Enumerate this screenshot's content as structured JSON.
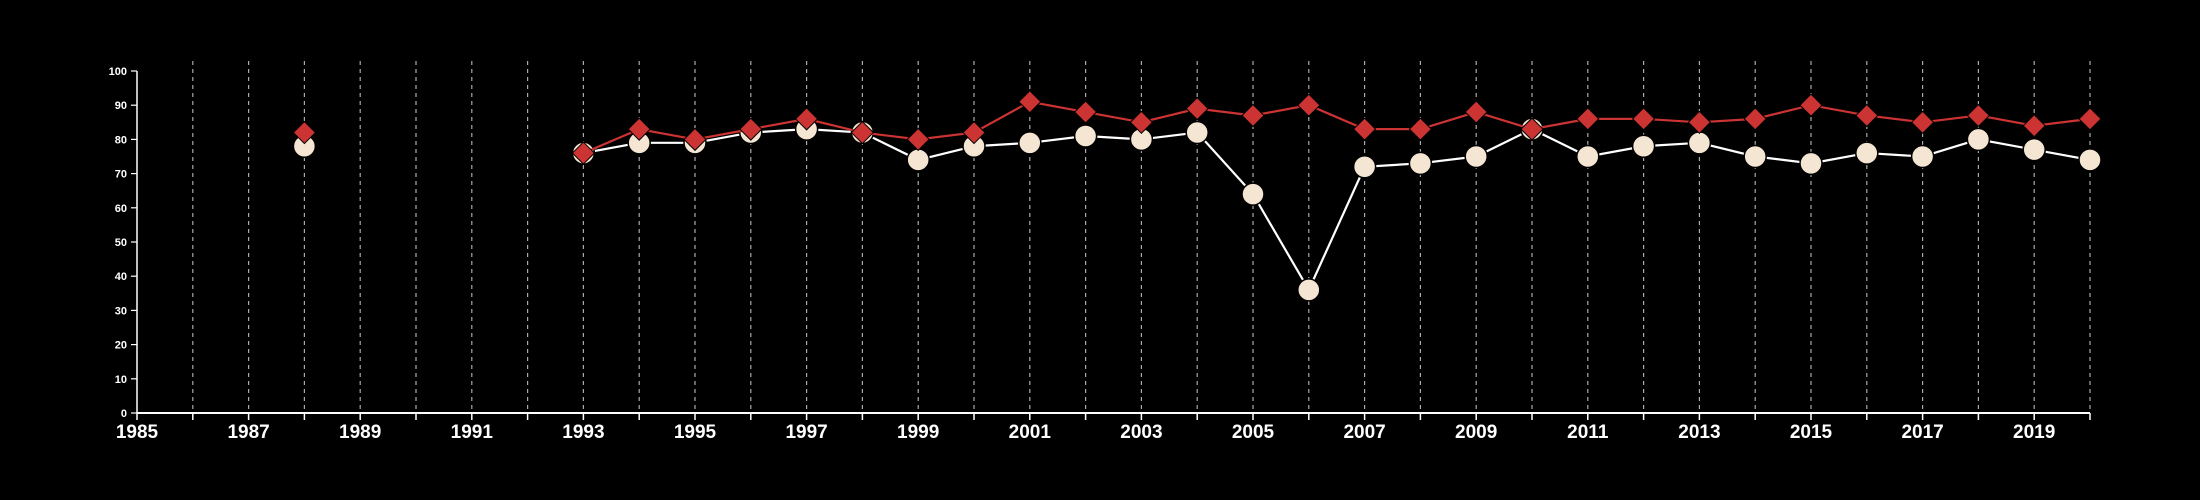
{
  "chart_data": {
    "type": "line",
    "title": "",
    "xlabel": "",
    "ylabel": "",
    "xlim": [
      1985,
      2020
    ],
    "ylim": [
      0,
      100
    ],
    "grid": "vertical dashed at every year",
    "legend": "none",
    "background": "#000000",
    "x_ticks": [
      1985,
      1987,
      1989,
      1991,
      1993,
      1995,
      1997,
      1999,
      2001,
      2003,
      2005,
      2007,
      2009,
      2011,
      2013,
      2015,
      2017,
      2019
    ],
    "x_tick_labels": [
      "1985",
      "1987",
      "1989",
      "1991",
      "1993",
      "1995",
      "1997",
      "1999",
      "2001",
      "2003",
      "2005",
      "2007",
      "2009",
      "2011",
      "2013",
      "2015",
      "2017",
      "2019"
    ],
    "y_ticks": [
      0,
      10,
      20,
      30,
      40,
      50,
      60,
      70,
      80,
      90,
      100
    ],
    "y_tick_labels": [
      "0",
      "10",
      "20",
      "30",
      "40",
      "50",
      "60",
      "70",
      "80",
      "90",
      "100"
    ],
    "series": [
      {
        "marker": "diamond",
        "color": "#cc3333",
        "line_color": "#cc3333",
        "x": [
          1988,
          1993,
          1994,
          1995,
          1996,
          1997,
          1998,
          1999,
          2000,
          2001,
          2002,
          2003,
          2004,
          2005,
          2006,
          2007,
          2008,
          2009,
          2010,
          2011,
          2012,
          2013,
          2014,
          2015,
          2016,
          2017,
          2018,
          2019,
          2020
        ],
        "y": [
          82,
          76,
          83,
          80,
          83,
          86,
          82,
          80,
          82,
          91,
          88,
          85,
          89,
          87,
          90,
          83,
          83,
          88,
          83,
          86,
          86,
          85,
          86,
          90,
          87,
          85,
          87,
          84,
          86
        ]
      },
      {
        "marker": "circle",
        "color": "#f5e6d3",
        "line_color": "#ffffff",
        "x": [
          1988,
          1993,
          1994,
          1995,
          1996,
          1997,
          1998,
          1999,
          2000,
          2001,
          2002,
          2003,
          2004,
          2005,
          2006,
          2007,
          2008,
          2009,
          2010,
          2011,
          2012,
          2013,
          2014,
          2015,
          2016,
          2017,
          2018,
          2019,
          2020
        ],
        "y": [
          78,
          76,
          79,
          79,
          82,
          83,
          82,
          74,
          78,
          79,
          81,
          80,
          82,
          64,
          36,
          72,
          73,
          75,
          83,
          75,
          78,
          79,
          75,
          73,
          76,
          75,
          80,
          77,
          74
        ]
      }
    ]
  }
}
